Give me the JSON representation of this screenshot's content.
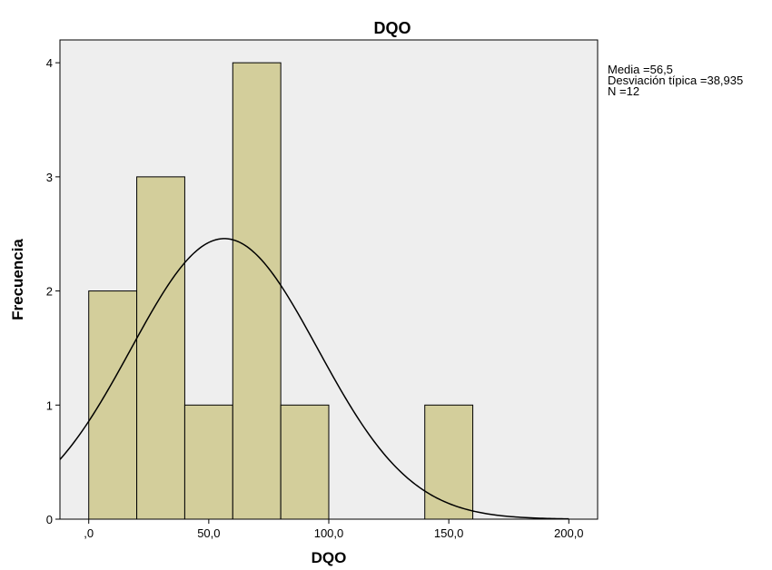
{
  "chart_data": {
    "type": "bar",
    "title": "DQO",
    "xlabel": "DQO",
    "ylabel": "Frecuencia",
    "xlim": [
      -12,
      212
    ],
    "ylim": [
      0,
      4.2
    ],
    "bins": [
      {
        "from": 0,
        "to": 20,
        "count": 2
      },
      {
        "from": 20,
        "to": 40,
        "count": 3
      },
      {
        "from": 40,
        "to": 60,
        "count": 1
      },
      {
        "from": 60,
        "to": 80,
        "count": 4
      },
      {
        "from": 80,
        "to": 100,
        "count": 1
      },
      {
        "from": 100,
        "to": 120,
        "count": 0
      },
      {
        "from": 120,
        "to": 140,
        "count": 0
      },
      {
        "from": 140,
        "to": 160,
        "count": 1
      }
    ],
    "x_ticks": [
      {
        "value": 0,
        "label": ",0"
      },
      {
        "value": 50,
        "label": "50,0"
      },
      {
        "value": 100,
        "label": "100,0"
      },
      {
        "value": 150,
        "label": "150,0"
      },
      {
        "value": 200,
        "label": "200,0"
      }
    ],
    "y_ticks": [
      {
        "value": 0,
        "label": "0"
      },
      {
        "value": 1,
        "label": "1"
      },
      {
        "value": 2,
        "label": "2"
      },
      {
        "value": 3,
        "label": "3"
      },
      {
        "value": 4,
        "label": "4"
      }
    ],
    "normal_curve": {
      "mean": 56.5,
      "sd": 38.935,
      "n": 12,
      "bin_width": 20
    },
    "grid": false,
    "legend": "right",
    "colors": {
      "plot_background": "#eeeeee",
      "bar_fill": "#d3ce9b",
      "bar_stroke": "#000000",
      "curve": "#000000"
    }
  },
  "stats": {
    "mean": "Media =56,5",
    "sd": "Desviación típica =38,935",
    "n": "N =12"
  }
}
